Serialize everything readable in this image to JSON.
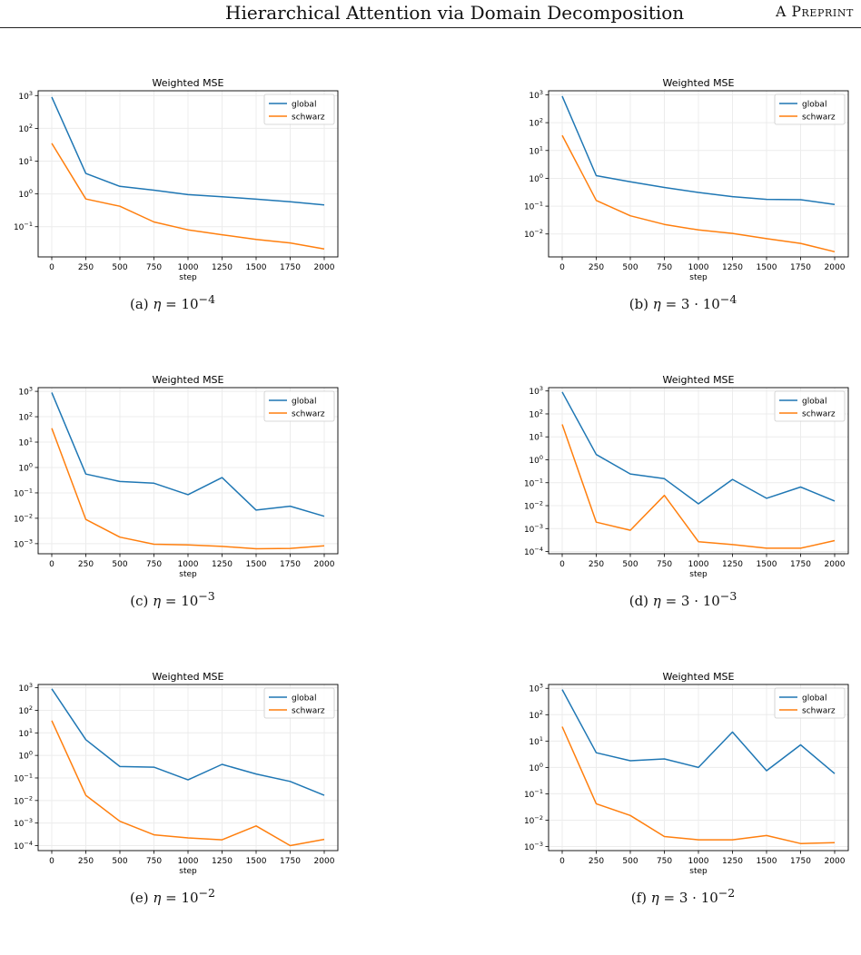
{
  "header": {
    "title": "Hierarchical Attention via Domain Decomposition",
    "label": "A Preprint"
  },
  "colors": {
    "global": "#1f77b4",
    "schwarz": "#ff7f0e",
    "grid": "#ececec"
  },
  "chart_data": [
    {
      "type": "line",
      "title": "Weighted MSE",
      "xlabel": "step",
      "ylabel": "",
      "log_y": true,
      "ylim": [
        0.012,
        1400
      ],
      "xlim": [
        -100,
        2100
      ],
      "x": [
        0,
        250,
        500,
        750,
        1000,
        1250,
        1500,
        1750,
        2000
      ],
      "x_ticks": [
        "0",
        "250",
        "500",
        "750",
        "1000",
        "1250",
        "1500",
        "1750",
        "2000"
      ],
      "y_ticks": [
        {
          "v": 1000,
          "e": "3"
        },
        {
          "v": 100,
          "e": "2"
        },
        {
          "v": 10,
          "e": "1"
        },
        {
          "v": 1,
          "e": "0"
        },
        {
          "v": 0.1,
          "e": "−1"
        }
      ],
      "legend": "upper right",
      "grid": true,
      "series": [
        {
          "name": "global",
          "values": [
            900,
            4.2,
            1.7,
            1.3,
            0.95,
            0.82,
            0.69,
            0.58,
            0.46
          ]
        },
        {
          "name": "schwarz",
          "values": [
            35,
            0.7,
            0.42,
            0.14,
            0.08,
            0.057,
            0.041,
            0.032,
            0.021
          ]
        }
      ],
      "caption": {
        "prefix": "(a) ",
        "eta": "η",
        "base": " = 10",
        "exp": "−4"
      }
    },
    {
      "type": "line",
      "title": "Weighted MSE",
      "xlabel": "step",
      "ylabel": "",
      "log_y": true,
      "ylim": [
        0.0015,
        1400
      ],
      "xlim": [
        -100,
        2100
      ],
      "x": [
        0,
        250,
        500,
        750,
        1000,
        1250,
        1500,
        1750,
        2000
      ],
      "x_ticks": [
        "0",
        "250",
        "500",
        "750",
        "1000",
        "1250",
        "1500",
        "1750",
        "2000"
      ],
      "y_ticks": [
        {
          "v": 1000,
          "e": "3"
        },
        {
          "v": 100,
          "e": "2"
        },
        {
          "v": 10,
          "e": "1"
        },
        {
          "v": 1,
          "e": "0"
        },
        {
          "v": 0.1,
          "e": "−1"
        },
        {
          "v": 0.01,
          "e": "−2"
        }
      ],
      "legend": "upper right",
      "grid": true,
      "series": [
        {
          "name": "global",
          "values": [
            900,
            1.25,
            0.75,
            0.47,
            0.31,
            0.22,
            0.175,
            0.17,
            0.115
          ]
        },
        {
          "name": "schwarz",
          "values": [
            35,
            0.16,
            0.045,
            0.022,
            0.014,
            0.0105,
            0.0068,
            0.0046,
            0.0023
          ]
        }
      ],
      "caption": {
        "prefix": "(b) ",
        "eta": "η",
        "base": " = 3 · 10",
        "exp": "−4"
      }
    },
    {
      "type": "line",
      "title": "Weighted MSE",
      "xlabel": "step",
      "ylabel": "",
      "log_y": true,
      "ylim": [
        0.0004,
        1400
      ],
      "xlim": [
        -100,
        2100
      ],
      "x": [
        0,
        250,
        500,
        750,
        1000,
        1250,
        1500,
        1750,
        2000
      ],
      "x_ticks": [
        "0",
        "250",
        "500",
        "750",
        "1000",
        "1250",
        "1500",
        "1750",
        "2000"
      ],
      "y_ticks": [
        {
          "v": 1000,
          "e": "3"
        },
        {
          "v": 100,
          "e": "2"
        },
        {
          "v": 10,
          "e": "1"
        },
        {
          "v": 1,
          "e": "0"
        },
        {
          "v": 0.1,
          "e": "−1"
        },
        {
          "v": 0.01,
          "e": "−2"
        },
        {
          "v": 0.001,
          "e": "−3"
        }
      ],
      "legend": "upper right",
      "grid": true,
      "series": [
        {
          "name": "global",
          "values": [
            900,
            0.55,
            0.28,
            0.24,
            0.085,
            0.4,
            0.021,
            0.03,
            0.012
          ]
        },
        {
          "name": "schwarz",
          "values": [
            35,
            0.009,
            0.0018,
            0.00095,
            0.0009,
            0.00078,
            0.00063,
            0.00065,
            0.00082
          ]
        }
      ],
      "caption": {
        "prefix": "(c) ",
        "eta": "η",
        "base": " = 10",
        "exp": "−3"
      }
    },
    {
      "type": "line",
      "title": "Weighted MSE",
      "xlabel": "step",
      "ylabel": "",
      "log_y": true,
      "ylim": [
        8e-05,
        1400
      ],
      "xlim": [
        -100,
        2100
      ],
      "x": [
        0,
        250,
        500,
        750,
        1000,
        1250,
        1500,
        1750,
        2000
      ],
      "x_ticks": [
        "0",
        "250",
        "500",
        "750",
        "1000",
        "1250",
        "1500",
        "1750",
        "2000"
      ],
      "y_ticks": [
        {
          "v": 1000,
          "e": "3"
        },
        {
          "v": 100,
          "e": "2"
        },
        {
          "v": 10,
          "e": "1"
        },
        {
          "v": 1,
          "e": "0"
        },
        {
          "v": 0.1,
          "e": "−1"
        },
        {
          "v": 0.01,
          "e": "−2"
        },
        {
          "v": 0.001,
          "e": "−3"
        },
        {
          "v": 0.0001,
          "e": "−4"
        }
      ],
      "legend": "upper right",
      "grid": true,
      "series": [
        {
          "name": "global",
          "values": [
            900,
            1.7,
            0.24,
            0.15,
            0.012,
            0.14,
            0.021,
            0.065,
            0.016
          ]
        },
        {
          "name": "schwarz",
          "values": [
            35,
            0.0019,
            0.00085,
            0.028,
            0.00027,
            0.0002,
            0.00014,
            0.00014,
            0.0003
          ]
        }
      ],
      "caption": {
        "prefix": "(d) ",
        "eta": "η",
        "base": " = 3 · 10",
        "exp": "−3"
      }
    },
    {
      "type": "line",
      "title": "Weighted MSE",
      "xlabel": "step",
      "ylabel": "",
      "log_y": true,
      "ylim": [
        6e-05,
        1400
      ],
      "xlim": [
        -100,
        2100
      ],
      "x": [
        0,
        250,
        500,
        750,
        1000,
        1250,
        1500,
        1750,
        2000
      ],
      "x_ticks": [
        "0",
        "250",
        "500",
        "750",
        "1000",
        "1250",
        "1500",
        "1750",
        "2000"
      ],
      "y_ticks": [
        {
          "v": 1000,
          "e": "3"
        },
        {
          "v": 100,
          "e": "2"
        },
        {
          "v": 10,
          "e": "1"
        },
        {
          "v": 1,
          "e": "0"
        },
        {
          "v": 0.1,
          "e": "−1"
        },
        {
          "v": 0.01,
          "e": "−2"
        },
        {
          "v": 0.001,
          "e": "−3"
        },
        {
          "v": 0.0001,
          "e": "−4"
        }
      ],
      "legend": "upper right",
      "grid": true,
      "series": [
        {
          "name": "global",
          "values": [
            900,
            5,
            0.32,
            0.3,
            0.082,
            0.4,
            0.15,
            0.07,
            0.017
          ]
        },
        {
          "name": "schwarz",
          "values": [
            35,
            0.017,
            0.0012,
            0.0003,
            0.00022,
            0.00018,
            0.00075,
            0.0001,
            0.00019
          ]
        }
      ],
      "caption": {
        "prefix": "(e) ",
        "eta": "η",
        "base": " = 10",
        "exp": "−2"
      }
    },
    {
      "type": "line",
      "title": "Weighted MSE",
      "xlabel": "step",
      "ylabel": "",
      "log_y": true,
      "ylim": [
        0.0007,
        1400
      ],
      "xlim": [
        -100,
        2100
      ],
      "x": [
        0,
        250,
        500,
        750,
        1000,
        1250,
        1500,
        1750,
        2000
      ],
      "x_ticks": [
        "0",
        "250",
        "500",
        "750",
        "1000",
        "1250",
        "1500",
        "1750",
        "2000"
      ],
      "y_ticks": [
        {
          "v": 1000,
          "e": "3"
        },
        {
          "v": 100,
          "e": "2"
        },
        {
          "v": 10,
          "e": "1"
        },
        {
          "v": 1,
          "e": "0"
        },
        {
          "v": 0.1,
          "e": "−1"
        },
        {
          "v": 0.01,
          "e": "−2"
        },
        {
          "v": 0.001,
          "e": "−3"
        }
      ],
      "legend": "upper right",
      "grid": true,
      "series": [
        {
          "name": "global",
          "values": [
            900,
            3.6,
            1.8,
            2.1,
            1,
            22,
            0.75,
            7.2,
            0.58
          ]
        },
        {
          "name": "schwarz",
          "values": [
            35,
            0.042,
            0.015,
            0.0024,
            0.0018,
            0.0018,
            0.0026,
            0.0013,
            0.0014
          ]
        }
      ],
      "caption": {
        "prefix": "(f) ",
        "eta": "η",
        "base": " = 3 · 10",
        "exp": "−2"
      }
    }
  ]
}
